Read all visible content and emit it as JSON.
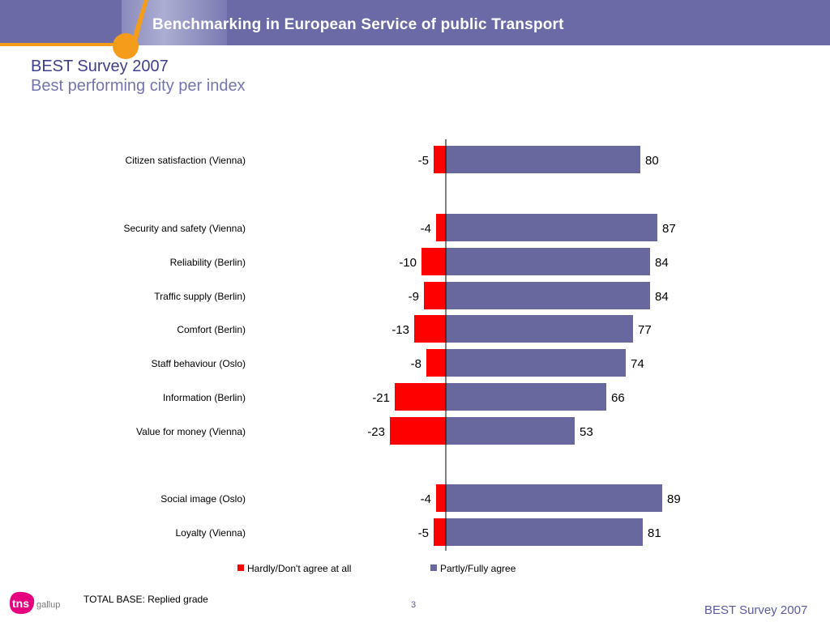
{
  "header": {
    "banner_title": "Benchmarking in European Service of public Transport",
    "title": "BEST Survey 2007",
    "subtitle": "Best performing city per index"
  },
  "chart_data": {
    "type": "bar",
    "orientation": "horizontal",
    "stacked": "diverging",
    "categories": [
      "Citizen satisfaction (Vienna)",
      "Security and safety (Vienna)",
      "Reliability (Berlin)",
      "Traffic supply (Berlin)",
      "Comfort (Berlin)",
      "Staff behaviour (Oslo)",
      "Information (Berlin)",
      "Value for money (Vienna)",
      "Social image (Oslo)",
      "Loyalty (Vienna)"
    ],
    "series": [
      {
        "name": "Hardly/Don't agree at all",
        "color": "#ff0000",
        "values": [
          -5,
          -4,
          -10,
          -9,
          -13,
          -8,
          -21,
          -23,
          -4,
          -5
        ]
      },
      {
        "name": "Partly/Fully agree",
        "color": "#68679e",
        "values": [
          80,
          87,
          84,
          84,
          77,
          74,
          66,
          53,
          89,
          81
        ]
      }
    ],
    "title": "",
    "xlabel": "",
    "ylabel": "",
    "legend": "bottom",
    "grid": false
  },
  "footer": {
    "base_note": "TOTAL BASE: Replied grade",
    "page_number": "3",
    "title": "BEST Survey 2007",
    "logo_text_1": "tns",
    "logo_text_2": "gallup"
  }
}
